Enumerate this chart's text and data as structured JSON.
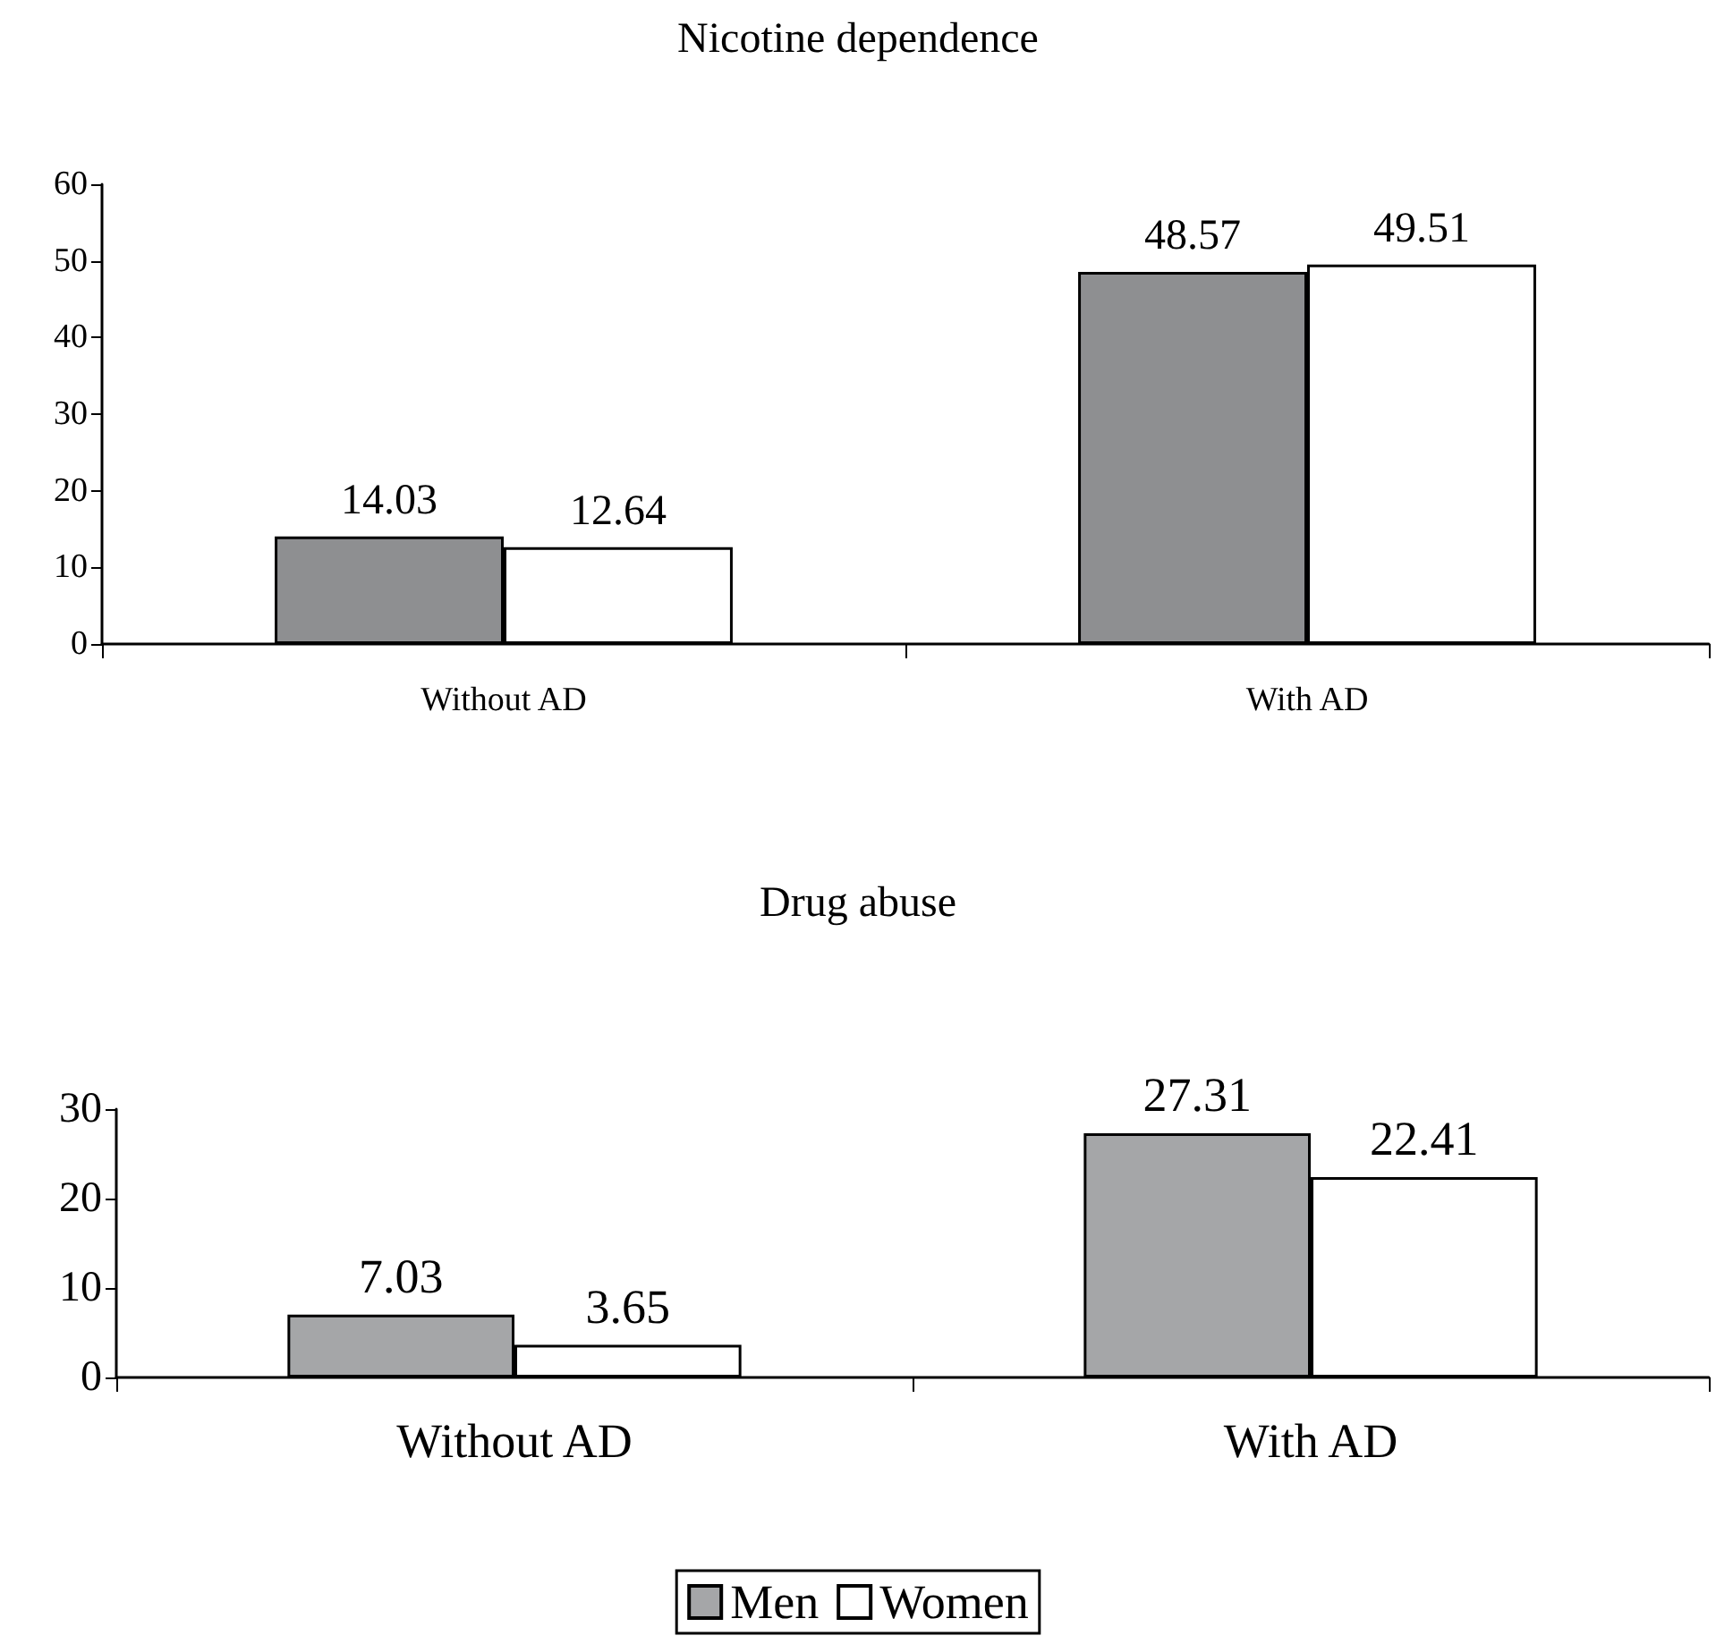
{
  "chart_data": [
    {
      "type": "bar",
      "title": "Nicotine dependence",
      "categories": [
        "Without AD",
        "With AD"
      ],
      "series": [
        {
          "color": "#8e8f91",
          "values": [
            14.03,
            48.57
          ]
        },
        {
          "color": "#ffffff",
          "values": [
            12.64,
            49.51
          ]
        }
      ],
      "ylim": [
        0,
        60
      ],
      "yticks": [
        0,
        10,
        20,
        30,
        40,
        50,
        60
      ],
      "data_labels": true,
      "grid": false,
      "legend": false
    },
    {
      "type": "bar",
      "title": "Drug abuse",
      "categories": [
        "Without AD",
        "With AD"
      ],
      "series": [
        {
          "name": "Men",
          "color": "#a5a6a8",
          "values": [
            7.03,
            27.31
          ]
        },
        {
          "name": "Women",
          "color": "#ffffff",
          "values": [
            3.65,
            22.41
          ]
        }
      ],
      "ylim": [
        0,
        30
      ],
      "yticks": [
        0,
        10,
        20,
        30
      ],
      "data_labels": true,
      "grid": false,
      "legend": "bottom"
    }
  ]
}
